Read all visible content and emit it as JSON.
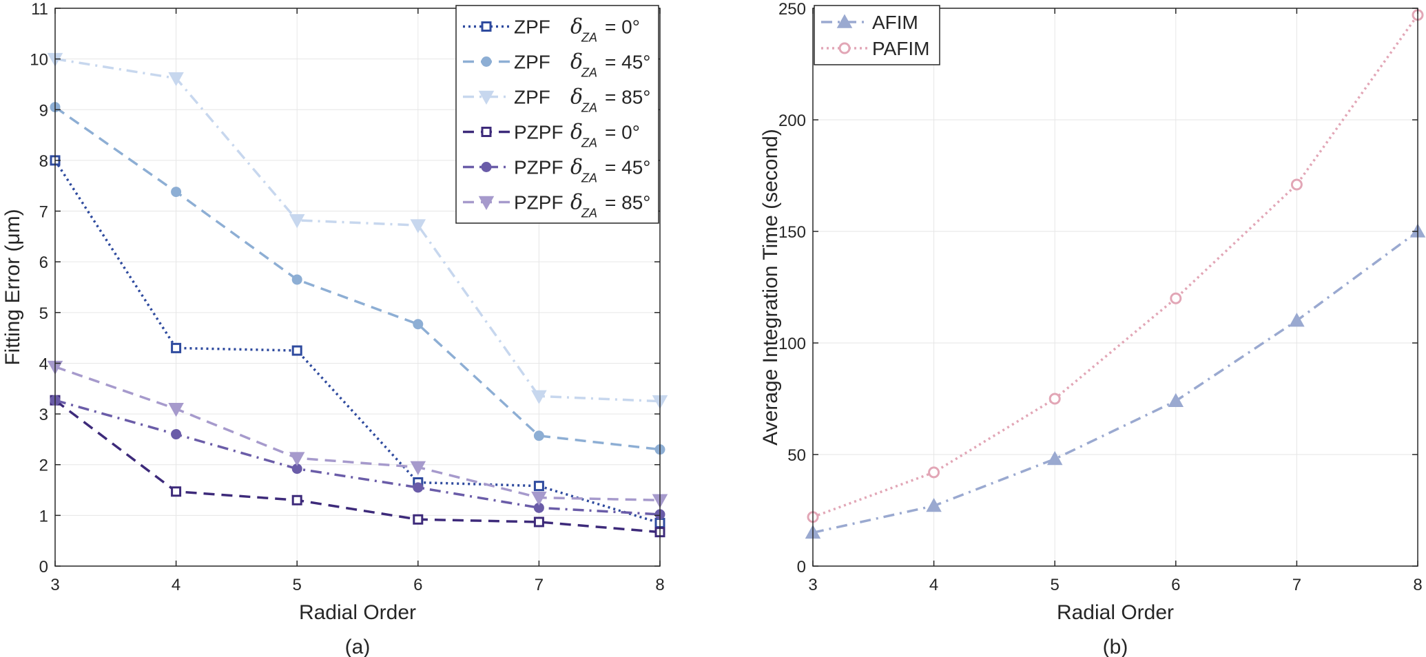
{
  "chart_data": [
    {
      "panel": "a",
      "type": "line",
      "caption": "(a)",
      "xlabel": "Radial Order",
      "ylabel": "Fitting Error (μm)",
      "xlim": [
        3,
        8
      ],
      "ylim": [
        0,
        11
      ],
      "xticks": [
        "3",
        "4",
        "5",
        "6",
        "7",
        "8"
      ],
      "yticks": [
        "0",
        "1",
        "2",
        "3",
        "4",
        "5",
        "6",
        "7",
        "8",
        "9",
        "10",
        "11"
      ],
      "grid": true,
      "legend_position": "top-right",
      "x": [
        3,
        4,
        5,
        6,
        7,
        8
      ],
      "series": [
        {
          "name": "ZPF",
          "symbol": "δ",
          "sub": "ZA",
          "angle": "= 0°",
          "color": "#2E4A9E",
          "dash": "dotted",
          "marker": "square",
          "values": [
            8.0,
            4.3,
            4.25,
            1.65,
            1.58,
            0.85
          ]
        },
        {
          "name": "ZPF",
          "symbol": "δ",
          "sub": "ZA",
          "angle": "= 45°",
          "color": "#8DAED4",
          "dash": "dashed",
          "marker": "circle",
          "values": [
            9.05,
            7.38,
            5.65,
            4.77,
            2.57,
            2.3
          ]
        },
        {
          "name": "ZPF",
          "symbol": "δ",
          "sub": "ZA",
          "angle": "= 85°",
          "color": "#C7D7EE",
          "dash": "dashdot",
          "marker": "triangle-down",
          "values": [
            10.0,
            9.62,
            6.82,
            6.72,
            3.35,
            3.25
          ]
        },
        {
          "name": "PZPF",
          "symbol": "δ",
          "sub": "ZA",
          "angle": "= 0°",
          "color": "#3D2A7A",
          "dash": "dashed",
          "marker": "square",
          "values": [
            3.27,
            1.47,
            1.3,
            0.92,
            0.87,
            0.67
          ]
        },
        {
          "name": "PZPF",
          "symbol": "δ",
          "sub": "ZA",
          "angle": "= 45°",
          "color": "#6A5CA8",
          "dash": "dashdot",
          "marker": "circle",
          "values": [
            3.27,
            2.6,
            1.92,
            1.55,
            1.15,
            1.02
          ]
        },
        {
          "name": "PZPF",
          "symbol": "δ",
          "sub": "ZA",
          "angle": "= 85°",
          "color": "#A69ACC",
          "dash": "dashed",
          "marker": "triangle-down",
          "values": [
            3.93,
            3.1,
            2.13,
            1.95,
            1.35,
            1.3
          ]
        }
      ]
    },
    {
      "panel": "b",
      "type": "line",
      "caption": "(b)",
      "xlabel": "Radial Order",
      "ylabel": "Average Integration Time (second)",
      "xlim": [
        3,
        8
      ],
      "ylim": [
        0,
        250
      ],
      "xticks": [
        "3",
        "4",
        "5",
        "6",
        "7",
        "8"
      ],
      "yticks": [
        "0",
        "50",
        "100",
        "150",
        "200",
        "250"
      ],
      "grid": true,
      "legend_position": "top-left",
      "x": [
        3,
        4,
        5,
        6,
        7,
        8
      ],
      "series": [
        {
          "name": "AFIM",
          "color": "#9AA9D0",
          "dash": "dashdot",
          "marker": "triangle-up",
          "values": [
            15,
            27,
            48,
            74,
            110,
            150
          ]
        },
        {
          "name": "PAFIM",
          "color": "#E2A6B6",
          "dash": "dotted",
          "marker": "circle-open",
          "values": [
            22,
            42,
            75,
            120,
            171,
            247
          ]
        }
      ]
    }
  ]
}
